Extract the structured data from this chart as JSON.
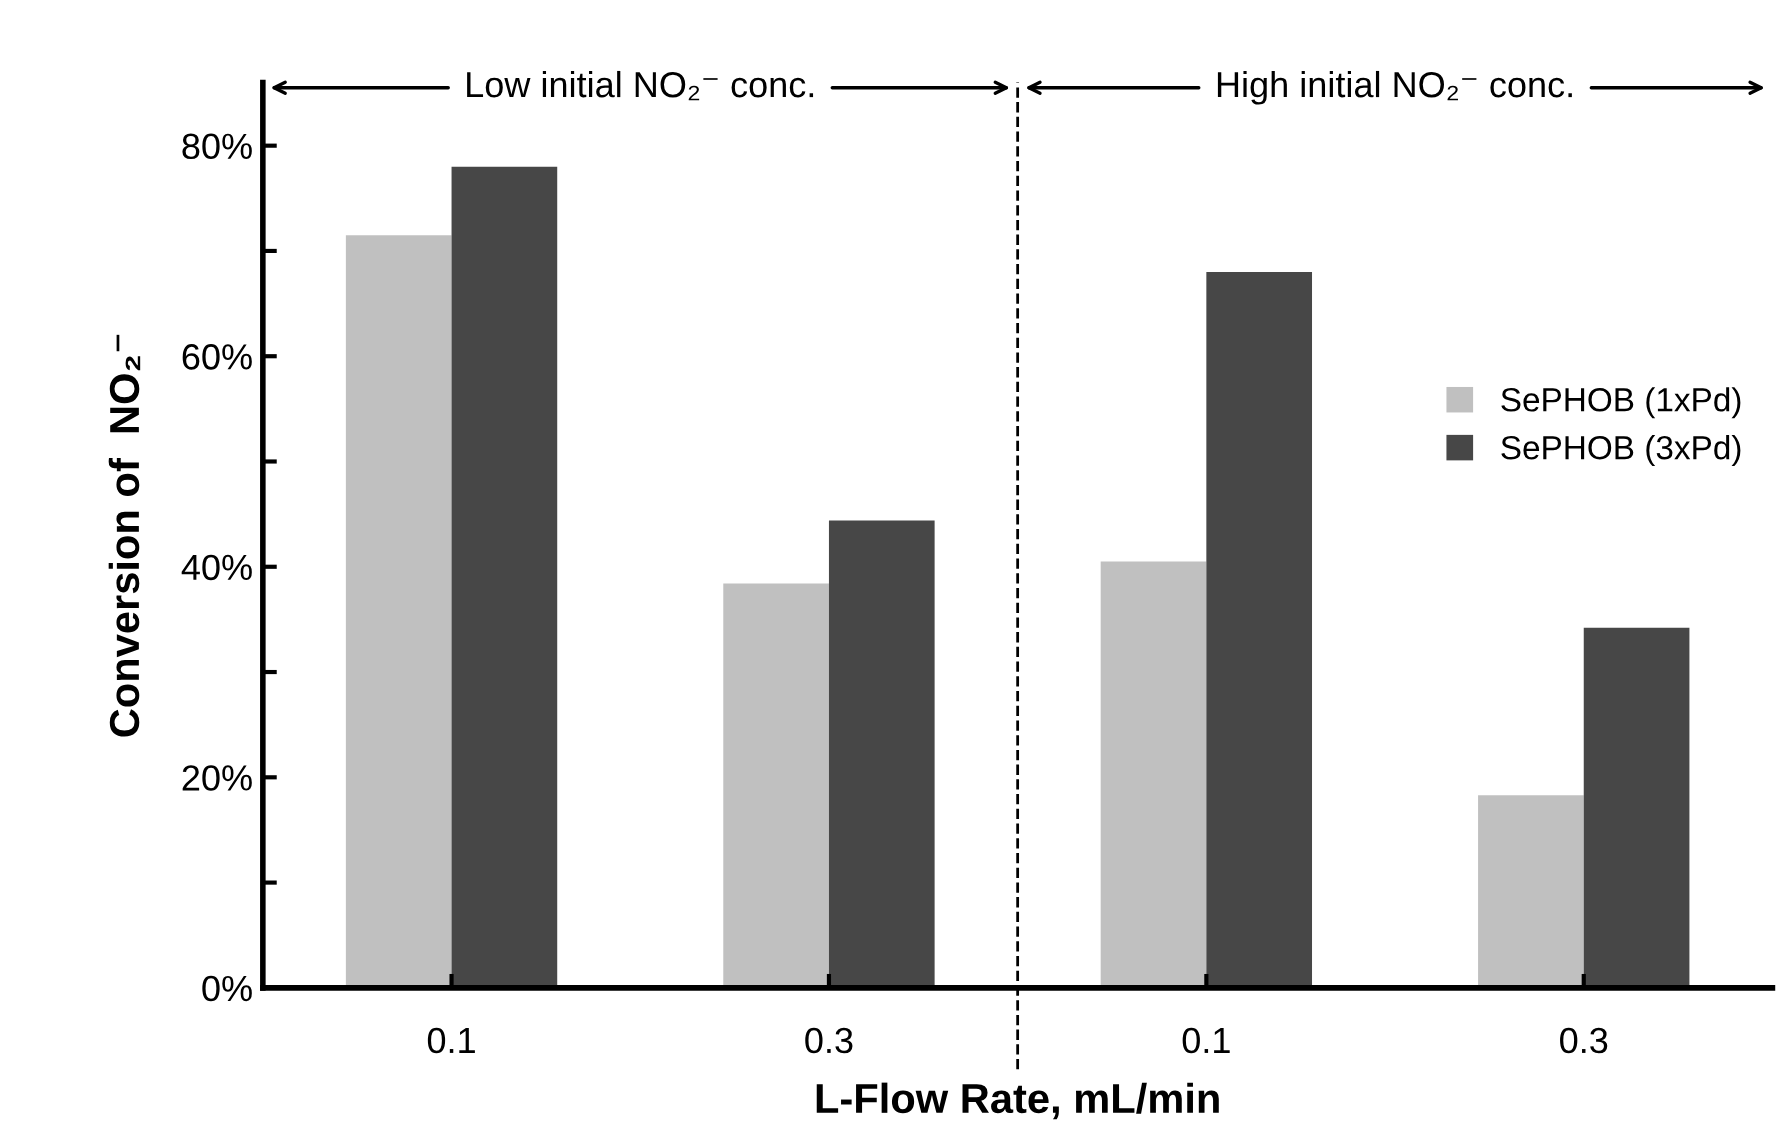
{
  "chart_data": {
    "type": "bar",
    "ylabel": "Conversion of  NO₂⁻",
    "xlabel": "L-Flow Rate, mL/min",
    "categories": [
      "0.1",
      "0.3",
      "0.1",
      "0.3"
    ],
    "series": [
      {
        "name": "SePHOB (1xPd)",
        "color": "#c0c0c0",
        "values": [
          71.5,
          38.4,
          40.5,
          18.3
        ]
      },
      {
        "name": "SePHOB (3xPd)",
        "color": "#474747",
        "values": [
          78.0,
          44.4,
          68.0,
          34.2
        ]
      }
    ],
    "ylim": [
      0,
      86
    ],
    "yticks": [
      {
        "value": 0,
        "label": "0%"
      },
      {
        "value": 10,
        "label": null
      },
      {
        "value": 20,
        "label": "20%"
      },
      {
        "value": 30,
        "label": null
      },
      {
        "value": 40,
        "label": "40%"
      },
      {
        "value": 50,
        "label": null
      },
      {
        "value": 60,
        "label": "60%"
      },
      {
        "value": 70,
        "label": null
      },
      {
        "value": 80,
        "label": "80%"
      }
    ],
    "annotations": [
      "Low initial NO₂⁻ conc.",
      "High initial NO₂⁻ conc."
    ],
    "legend": "right",
    "grid": false
  }
}
